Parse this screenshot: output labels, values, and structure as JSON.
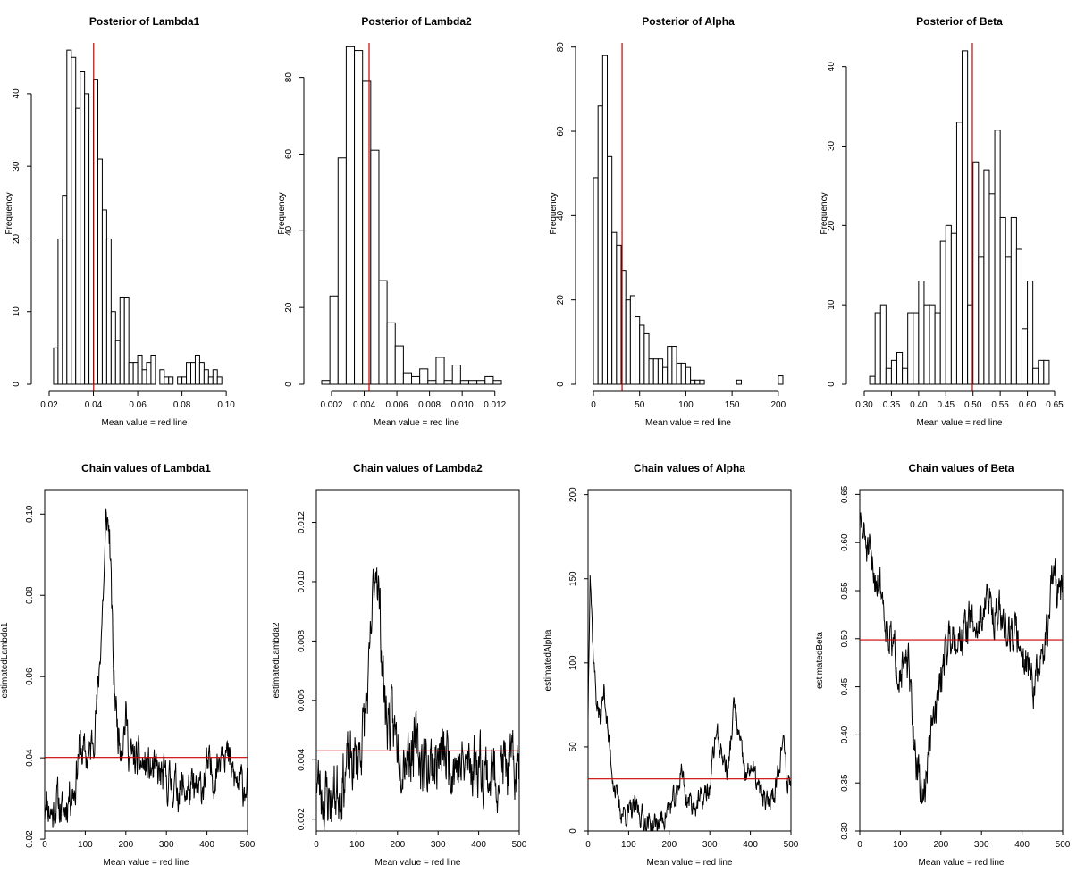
{
  "figure": {
    "description_colors": {
      "bars_fill": "#ffffff",
      "bars_stroke": "#000000",
      "trace_line": "#000000",
      "mean_line": "#cc0000"
    }
  },
  "chart_data": [
    {
      "type": "bar",
      "title": "Posterior of Lambda1",
      "xlabel": "Mean value = red line",
      "ylabel": "Frequency",
      "xlim": [
        0.02,
        0.106
      ],
      "ylim": [
        0,
        47
      ],
      "xticks": [
        0.02,
        0.04,
        0.06,
        0.08,
        0.1
      ],
      "xtick_labels": [
        "0.02",
        "0.04",
        "0.06",
        "0.08",
        "0.10"
      ],
      "yticks": [
        0,
        10,
        20,
        30,
        40
      ],
      "bins": {
        "start": 0.022,
        "width": 0.002
      },
      "values": [
        5,
        20,
        26,
        46,
        45,
        38,
        43,
        40,
        35,
        42,
        31,
        24,
        20,
        10,
        6,
        12,
        12,
        3,
        3,
        4,
        2,
        3,
        4,
        0,
        2,
        1,
        1,
        0,
        1,
        1,
        3,
        3,
        4,
        3,
        2,
        1,
        2,
        1
      ],
      "mean": 0.0401
    },
    {
      "type": "bar",
      "title": "Posterior of Lambda2",
      "xlabel": "Mean value = red line",
      "ylabel": "Frequency",
      "xlim": [
        0.0014,
        0.013
      ],
      "ylim": [
        0,
        89
      ],
      "xticks": [
        0.002,
        0.004,
        0.006,
        0.008,
        0.01,
        0.012
      ],
      "xtick_labels": [
        "0.002",
        "0.004",
        "0.006",
        "0.008",
        "0.010",
        "0.012"
      ],
      "yticks": [
        0,
        20,
        40,
        60,
        80
      ],
      "bins": {
        "start": 0.0014,
        "width": 0.0005
      },
      "values": [
        1,
        23,
        59,
        88,
        87,
        79,
        61,
        27,
        16,
        10,
        3,
        2,
        4,
        1,
        7,
        1,
        5,
        1,
        1,
        1,
        2,
        1
      ],
      "mean": 0.0043
    },
    {
      "type": "bar",
      "title": "Posterior of Alpha",
      "xlabel": "Mean value = red line",
      "ylabel": "Frequency",
      "xlim": [
        0,
        205
      ],
      "ylim": [
        0,
        81
      ],
      "xticks": [
        0,
        50,
        100,
        150,
        200
      ],
      "xtick_labels": [
        "0",
        "50",
        "100",
        "150",
        "200"
      ],
      "yticks": [
        0,
        20,
        40,
        60,
        80
      ],
      "bins": {
        "start": 0,
        "width": 5
      },
      "values": [
        49,
        66,
        78,
        54,
        36,
        33,
        27,
        20,
        21,
        16,
        14,
        12,
        6,
        6,
        6,
        4,
        9,
        9,
        5,
        5,
        4,
        1,
        1,
        1,
        0,
        0,
        0,
        0,
        0,
        0,
        0,
        1,
        0,
        0,
        0,
        0,
        0,
        0,
        0,
        0,
        2
      ],
      "mean": 31
    },
    {
      "type": "bar",
      "title": "Posterior of Beta",
      "xlabel": "Mean value = red line",
      "ylabel": "Frequency",
      "xlim": [
        0.3,
        0.65
      ],
      "ylim": [
        0,
        43
      ],
      "xticks": [
        0.3,
        0.35,
        0.4,
        0.45,
        0.5,
        0.55,
        0.6,
        0.65
      ],
      "xtick_labels": [
        "0.30",
        "0.35",
        "0.40",
        "0.45",
        "0.50",
        "0.55",
        "0.60",
        "0.65"
      ],
      "yticks": [
        0,
        10,
        20,
        30,
        40
      ],
      "bins": {
        "start": 0.31,
        "width": 0.01
      },
      "values": [
        1,
        9,
        10,
        2,
        3,
        4,
        2,
        9,
        9,
        13,
        10,
        10,
        9,
        18,
        20,
        19,
        33,
        42,
        10,
        28,
        16,
        27,
        24,
        32,
        21,
        16,
        21,
        17,
        7,
        13,
        2,
        3,
        3
      ],
      "mean": 0.4988
    },
    {
      "type": "line",
      "title": "Chain values of Lambda1",
      "xlabel": "Mean value = red line",
      "ylabel": "estimatedLambda1",
      "xlim": [
        0,
        500
      ],
      "ylim": [
        0.022,
        0.106
      ],
      "xticks": [
        0,
        100,
        200,
        300,
        400,
        500
      ],
      "xtick_labels": [
        "0",
        "100",
        "200",
        "300",
        "400",
        "500"
      ],
      "yticks": [
        0.02,
        0.04,
        0.06,
        0.08,
        0.1
      ],
      "ytick_labels": [
        "0.02",
        "0.04",
        "0.06",
        "0.08",
        "0.10"
      ],
      "trace": {
        "n": 500,
        "seed": 11,
        "noise": 0.0042,
        "anchors": [
          [
            0,
            0.031
          ],
          [
            10,
            0.028
          ],
          [
            20,
            0.026
          ],
          [
            30,
            0.03
          ],
          [
            45,
            0.026
          ],
          [
            60,
            0.031
          ],
          [
            75,
            0.033
          ],
          [
            85,
            0.043
          ],
          [
            95,
            0.041
          ],
          [
            110,
            0.04
          ],
          [
            120,
            0.046
          ],
          [
            130,
            0.054
          ],
          [
            140,
            0.072
          ],
          [
            148,
            0.088
          ],
          [
            152,
            0.1
          ],
          [
            160,
            0.095
          ],
          [
            170,
            0.06
          ],
          [
            180,
            0.047
          ],
          [
            190,
            0.044
          ],
          [
            200,
            0.05
          ],
          [
            210,
            0.04
          ],
          [
            230,
            0.039
          ],
          [
            260,
            0.037
          ],
          [
            290,
            0.035
          ],
          [
            320,
            0.033
          ],
          [
            350,
            0.032
          ],
          [
            380,
            0.031
          ],
          [
            400,
            0.037
          ],
          [
            420,
            0.036
          ],
          [
            430,
            0.04
          ],
          [
            440,
            0.046
          ],
          [
            450,
            0.04
          ],
          [
            470,
            0.034
          ],
          [
            490,
            0.033
          ],
          [
            500,
            0.035
          ]
        ]
      },
      "mean": 0.0401
    },
    {
      "type": "line",
      "title": "Chain values of Lambda2",
      "xlabel": "Mean value = red line",
      "ylabel": "estimatedLambda2",
      "xlim": [
        0,
        500
      ],
      "ylim": [
        0.0016,
        0.0131
      ],
      "xticks": [
        0,
        100,
        200,
        300,
        400,
        500
      ],
      "xtick_labels": [
        "0",
        "100",
        "200",
        "300",
        "400",
        "500"
      ],
      "yticks": [
        0.002,
        0.004,
        0.006,
        0.008,
        0.01,
        0.012
      ],
      "ytick_labels": [
        "0.002",
        "0.004",
        "0.006",
        "0.008",
        "0.010",
        "0.012"
      ],
      "trace": {
        "n": 500,
        "seed": 23,
        "noise": 0.0009,
        "anchors": [
          [
            0,
            0.0034
          ],
          [
            20,
            0.0027
          ],
          [
            40,
            0.0028
          ],
          [
            60,
            0.0032
          ],
          [
            80,
            0.0038
          ],
          [
            100,
            0.004
          ],
          [
            115,
            0.0049
          ],
          [
            130,
            0.0067
          ],
          [
            140,
            0.0095
          ],
          [
            148,
            0.011
          ],
          [
            160,
            0.008
          ],
          [
            170,
            0.0056
          ],
          [
            190,
            0.005
          ],
          [
            210,
            0.0043
          ],
          [
            240,
            0.0045
          ],
          [
            270,
            0.0038
          ],
          [
            300,
            0.004
          ],
          [
            330,
            0.0041
          ],
          [
            360,
            0.0037
          ],
          [
            400,
            0.004
          ],
          [
            430,
            0.0034
          ],
          [
            460,
            0.0038
          ],
          [
            480,
            0.0036
          ],
          [
            500,
            0.0037
          ]
        ]
      },
      "mean": 0.0043
    },
    {
      "type": "line",
      "title": "Chain values of Alpha",
      "xlabel": "Mean value = red line",
      "ylabel": "estimatedAlpha",
      "xlim": [
        0,
        500
      ],
      "ylim": [
        0,
        203
      ],
      "xticks": [
        0,
        100,
        200,
        300,
        400,
        500
      ],
      "xtick_labels": [
        "0",
        "100",
        "200",
        "300",
        "400",
        "500"
      ],
      "yticks": [
        0,
        50,
        100,
        150,
        200
      ],
      "ytick_labels": [
        "0",
        "50",
        "100",
        "150",
        "200"
      ],
      "trace": {
        "n": 500,
        "seed": 37,
        "noise": 6,
        "anchors": [
          [
            0,
            70
          ],
          [
            5,
            160
          ],
          [
            12,
            110
          ],
          [
            20,
            80
          ],
          [
            30,
            65
          ],
          [
            40,
            85
          ],
          [
            50,
            55
          ],
          [
            60,
            35
          ],
          [
            70,
            20
          ],
          [
            80,
            12
          ],
          [
            100,
            10
          ],
          [
            120,
            14
          ],
          [
            140,
            6
          ],
          [
            160,
            3
          ],
          [
            180,
            6
          ],
          [
            200,
            14
          ],
          [
            220,
            20
          ],
          [
            230,
            40
          ],
          [
            240,
            20
          ],
          [
            260,
            16
          ],
          [
            280,
            18
          ],
          [
            300,
            25
          ],
          [
            315,
            60
          ],
          [
            330,
            45
          ],
          [
            345,
            35
          ],
          [
            360,
            75
          ],
          [
            375,
            50
          ],
          [
            390,
            30
          ],
          [
            400,
            40
          ],
          [
            420,
            25
          ],
          [
            440,
            15
          ],
          [
            460,
            25
          ],
          [
            480,
            55
          ],
          [
            490,
            30
          ],
          [
            500,
            30
          ]
        ]
      },
      "mean": 31
    },
    {
      "type": "line",
      "title": "Chain values of Beta",
      "xlabel": "Mean value = red line",
      "ylabel": "estimatedBeta",
      "xlim": [
        0,
        500
      ],
      "ylim": [
        0.3,
        0.655
      ],
      "xticks": [
        0,
        100,
        200,
        300,
        400,
        500
      ],
      "xtick_labels": [
        "0",
        "100",
        "200",
        "300",
        "400",
        "500"
      ],
      "yticks": [
        0.3,
        0.35,
        0.4,
        0.45,
        0.5,
        0.55,
        0.6,
        0.65
      ],
      "ytick_labels": [
        "0.30",
        "0.35",
        "0.40",
        "0.45",
        "0.50",
        "0.55",
        "0.60",
        "0.65"
      ],
      "trace": {
        "n": 500,
        "seed": 51,
        "noise": 0.018,
        "anchors": [
          [
            0,
            0.62
          ],
          [
            15,
            0.6
          ],
          [
            30,
            0.57
          ],
          [
            50,
            0.56
          ],
          [
            65,
            0.52
          ],
          [
            80,
            0.49
          ],
          [
            100,
            0.47
          ],
          [
            120,
            0.47
          ],
          [
            130,
            0.41
          ],
          [
            140,
            0.37
          ],
          [
            150,
            0.34
          ],
          [
            160,
            0.34
          ],
          [
            175,
            0.4
          ],
          [
            190,
            0.43
          ],
          [
            210,
            0.49
          ],
          [
            230,
            0.51
          ],
          [
            250,
            0.5
          ],
          [
            270,
            0.52
          ],
          [
            290,
            0.51
          ],
          [
            310,
            0.54
          ],
          [
            330,
            0.53
          ],
          [
            350,
            0.52
          ],
          [
            370,
            0.51
          ],
          [
            390,
            0.5
          ],
          [
            410,
            0.48
          ],
          [
            430,
            0.45
          ],
          [
            445,
            0.47
          ],
          [
            460,
            0.5
          ],
          [
            475,
            0.57
          ],
          [
            490,
            0.55
          ],
          [
            500,
            0.55
          ]
        ]
      },
      "mean": 0.4988
    }
  ]
}
